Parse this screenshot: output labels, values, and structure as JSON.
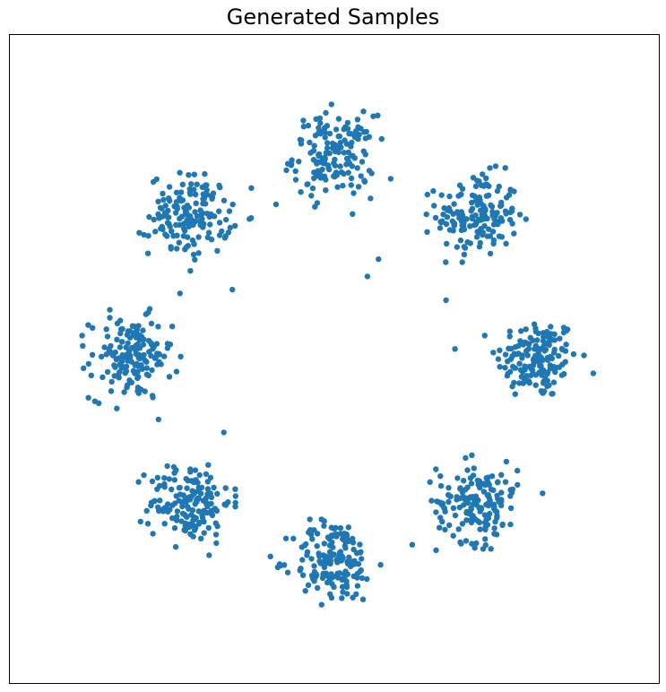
{
  "chart_data": {
    "type": "scatter",
    "title": "Generated Samples",
    "xlabel": "",
    "ylabel": "",
    "xlim": [
      -3.2,
      3.2
    ],
    "ylim": [
      -3.2,
      3.2
    ],
    "axis_ticks": false,
    "grid": false,
    "marker_color": "#1f77b4",
    "mixture": {
      "components": 8,
      "ring_radius": 2.0,
      "angles_deg": [
        0,
        45,
        90,
        135,
        180,
        225,
        270,
        315
      ],
      "cluster_std": 0.2,
      "points_per_cluster": 160,
      "outliers": [
        [
          1.76,
          -1.29
        ],
        [
          0.33,
          0.81
        ],
        [
          0.44,
          0.98
        ],
        [
          -1.0,
          0.68
        ],
        [
          -0.57,
          1.52
        ]
      ]
    }
  },
  "colors": {
    "points": "#1f77b4",
    "axes": "#000000",
    "background": "#ffffff"
  }
}
